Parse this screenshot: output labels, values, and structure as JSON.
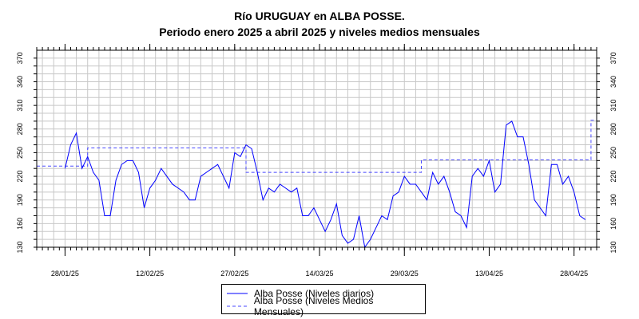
{
  "chart_data": {
    "type": "line",
    "title": "Río URUGUAY en ALBA POSSE.",
    "subtitle": "Periodo enero 2025 a abril 2025 y niveles medios mensuales",
    "xlabel": "",
    "ylabel": "",
    "x_range": [
      "2025-01-23",
      "2025-05-02"
    ],
    "ylim": [
      130,
      380
    ],
    "y_ticks": [
      130,
      140,
      150,
      160,
      170,
      180,
      190,
      200,
      210,
      220,
      230,
      240,
      250,
      260,
      270,
      280,
      290,
      300,
      310,
      320,
      330,
      340,
      350,
      360,
      370
    ],
    "y_tick_labels": [
      "130",
      "160",
      "190",
      "220",
      "250",
      "280",
      "310",
      "340",
      "370"
    ],
    "x_tick_dates": [
      "2025-01-28",
      "2025-02-12",
      "2025-02-27",
      "2025-03-14",
      "2025-03-29",
      "2025-04-13",
      "2025-04-28"
    ],
    "x_tick_labels": [
      "28/01/25",
      "12/02/25",
      "27/02/25",
      "14/03/25",
      "29/03/25",
      "13/04/25",
      "28/04/25"
    ],
    "grid": true,
    "legend_position": "bottom-center",
    "colors": {
      "daily": "#0000ff",
      "monthly": "#4a4aff",
      "grid": "#c8c8c8"
    },
    "series": [
      {
        "name": "Alba Posse (Niveles diarios)",
        "style": "solid",
        "points": [
          [
            "2025-01-28",
            230
          ],
          [
            "2025-01-29",
            260
          ],
          [
            "2025-01-30",
            275
          ],
          [
            "2025-01-31",
            230
          ],
          [
            "2025-02-01",
            245
          ],
          [
            "2025-02-02",
            225
          ],
          [
            "2025-02-03",
            215
          ],
          [
            "2025-02-04",
            170
          ],
          [
            "2025-02-05",
            170
          ],
          [
            "2025-02-06",
            215
          ],
          [
            "2025-02-07",
            235
          ],
          [
            "2025-02-08",
            240
          ],
          [
            "2025-02-09",
            240
          ],
          [
            "2025-02-10",
            225
          ],
          [
            "2025-02-11",
            180
          ],
          [
            "2025-02-12",
            205
          ],
          [
            "2025-02-13",
            215
          ],
          [
            "2025-02-14",
            230
          ],
          [
            "2025-02-15",
            220
          ],
          [
            "2025-02-16",
            210
          ],
          [
            "2025-02-17",
            205
          ],
          [
            "2025-02-18",
            200
          ],
          [
            "2025-02-19",
            190
          ],
          [
            "2025-02-20",
            190
          ],
          [
            "2025-02-21",
            220
          ],
          [
            "2025-02-22",
            225
          ],
          [
            "2025-02-23",
            230
          ],
          [
            "2025-02-24",
            235
          ],
          [
            "2025-02-25",
            220
          ],
          [
            "2025-02-26",
            205
          ],
          [
            "2025-02-27",
            250
          ],
          [
            "2025-02-28",
            245
          ],
          [
            "2025-03-01",
            260
          ],
          [
            "2025-03-02",
            255
          ],
          [
            "2025-03-03",
            225
          ],
          [
            "2025-03-04",
            190
          ],
          [
            "2025-03-05",
            205
          ],
          [
            "2025-03-06",
            200
          ],
          [
            "2025-03-07",
            210
          ],
          [
            "2025-03-08",
            205
          ],
          [
            "2025-03-09",
            200
          ],
          [
            "2025-03-10",
            205
          ],
          [
            "2025-03-11",
            170
          ],
          [
            "2025-03-12",
            170
          ],
          [
            "2025-03-13",
            180
          ],
          [
            "2025-03-14",
            165
          ],
          [
            "2025-03-15",
            150
          ],
          [
            "2025-03-16",
            165
          ],
          [
            "2025-03-17",
            185
          ],
          [
            "2025-03-18",
            145
          ],
          [
            "2025-03-19",
            135
          ],
          [
            "2025-03-20",
            140
          ],
          [
            "2025-03-21",
            170
          ],
          [
            "2025-03-22",
            130
          ],
          [
            "2025-03-23",
            140
          ],
          [
            "2025-03-24",
            155
          ],
          [
            "2025-03-25",
            170
          ],
          [
            "2025-03-26",
            165
          ],
          [
            "2025-03-27",
            195
          ],
          [
            "2025-03-28",
            200
          ],
          [
            "2025-03-29",
            220
          ],
          [
            "2025-03-30",
            210
          ],
          [
            "2025-03-31",
            210
          ],
          [
            "2025-04-01",
            200
          ],
          [
            "2025-04-02",
            190
          ],
          [
            "2025-04-03",
            225
          ],
          [
            "2025-04-04",
            210
          ],
          [
            "2025-04-05",
            220
          ],
          [
            "2025-04-06",
            200
          ],
          [
            "2025-04-07",
            175
          ],
          [
            "2025-04-08",
            170
          ],
          [
            "2025-04-09",
            155
          ],
          [
            "2025-04-10",
            220
          ],
          [
            "2025-04-11",
            230
          ],
          [
            "2025-04-12",
            220
          ],
          [
            "2025-04-13",
            240
          ],
          [
            "2025-04-14",
            200
          ],
          [
            "2025-04-15",
            210
          ],
          [
            "2025-04-16",
            285
          ],
          [
            "2025-04-17",
            290
          ],
          [
            "2025-04-18",
            270
          ],
          [
            "2025-04-19",
            270
          ],
          [
            "2025-04-20",
            235
          ],
          [
            "2025-04-21",
            190
          ],
          [
            "2025-04-22",
            180
          ],
          [
            "2025-04-23",
            170
          ],
          [
            "2025-04-24",
            235
          ],
          [
            "2025-04-25",
            235
          ],
          [
            "2025-04-26",
            210
          ],
          [
            "2025-04-27",
            220
          ],
          [
            "2025-04-28",
            200
          ],
          [
            "2025-04-29",
            170
          ],
          [
            "2025-04-30",
            165
          ]
        ]
      },
      {
        "name": "Alba Posse (Niveles Medios Mensuales)",
        "style": "dashed-step",
        "points": [
          [
            "2025-01-23",
            233
          ],
          [
            "2025-02-01",
            233
          ],
          [
            "2025-02-01",
            256
          ],
          [
            "2025-03-01",
            256
          ],
          [
            "2025-03-01",
            225
          ],
          [
            "2025-04-01",
            225
          ],
          [
            "2025-04-01",
            241
          ],
          [
            "2025-05-01",
            241
          ],
          [
            "2025-05-01",
            291
          ],
          [
            "2025-05-02",
            291
          ]
        ]
      }
    ]
  }
}
